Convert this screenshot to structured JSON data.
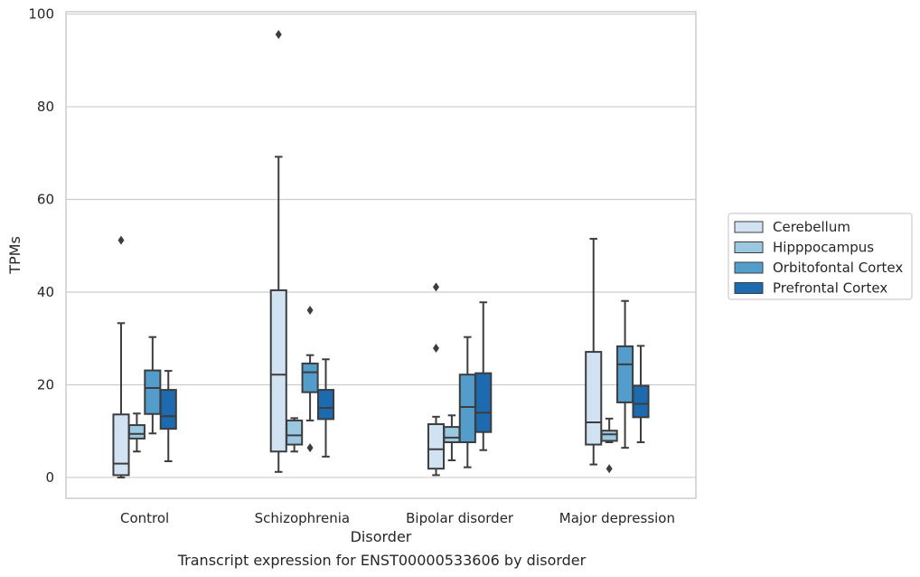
{
  "caption": "Transcript expression for ENST00000533606 by disorder",
  "chart_data": {
    "type": "boxplot",
    "xlabel": "Disorder",
    "ylabel": "TPMs",
    "ylim": [
      -4.5,
      100.5
    ],
    "yticks": [
      0,
      20,
      40,
      60,
      80,
      100
    ],
    "grid": "horizontal",
    "legend_position": "right",
    "categories": [
      "Control",
      "Schizophrenia",
      "Bipolar disorder",
      "Major depression"
    ],
    "series": [
      {
        "name": "Cerebellum",
        "color": "#d1e2f2",
        "boxes": [
          {
            "whislo": 0,
            "q1": 0.5,
            "med": 3,
            "q3": 13.6,
            "whishi": 33.3,
            "fliers": [
              51.2
            ]
          },
          {
            "whislo": 1.2,
            "q1": 5.6,
            "med": 22.2,
            "q3": 40.4,
            "whishi": 69.2,
            "fliers": [
              95.6
            ]
          },
          {
            "whislo": 0.5,
            "q1": 1.9,
            "med": 6.1,
            "q3": 11.5,
            "whishi": 13.1,
            "fliers": [
              27.9,
              41.1
            ]
          },
          {
            "whislo": 2.8,
            "q1": 7.1,
            "med": 11.9,
            "q3": 27.1,
            "whishi": 51.5,
            "fliers": []
          }
        ]
      },
      {
        "name": "Hipppocampus",
        "color": "#9ac8e0",
        "boxes": [
          {
            "whislo": 5.6,
            "q1": 8.4,
            "med": 9.4,
            "q3": 11.3,
            "whishi": 13.8,
            "fliers": []
          },
          {
            "whislo": 5.6,
            "q1": 7.1,
            "med": 9.1,
            "q3": 12.3,
            "whishi": 12.8,
            "fliers": []
          },
          {
            "whislo": 3.7,
            "q1": 7.6,
            "med": 8.6,
            "q3": 10.9,
            "whishi": 13.4,
            "fliers": []
          },
          {
            "whislo": 7.6,
            "q1": 7.9,
            "med": 9.3,
            "q3": 10.1,
            "whishi": 12.7,
            "fliers": [
              1.9
            ]
          }
        ]
      },
      {
        "name": "Orbitofontal Cortex",
        "color": "#529dcc",
        "boxes": [
          {
            "whislo": 9.5,
            "q1": 13.7,
            "med": 19.3,
            "q3": 23.1,
            "whishi": 30.3,
            "fliers": []
          },
          {
            "whislo": 12.3,
            "q1": 18.4,
            "med": 22.7,
            "q3": 24.6,
            "whishi": 26.4,
            "fliers": [
              6.4,
              36.1
            ]
          },
          {
            "whislo": 2.2,
            "q1": 7.6,
            "med": 15.2,
            "q3": 22.2,
            "whishi": 30.3,
            "fliers": []
          },
          {
            "whislo": 6.4,
            "q1": 16.2,
            "med": 24.4,
            "q3": 28.3,
            "whishi": 38.1,
            "fliers": []
          }
        ]
      },
      {
        "name": "Prefrontal Cortex",
        "color": "#1c6aaf",
        "boxes": [
          {
            "whislo": 3.5,
            "q1": 10.5,
            "med": 13.2,
            "q3": 18.9,
            "whishi": 23.0,
            "fliers": []
          },
          {
            "whislo": 4.5,
            "q1": 12.6,
            "med": 15.0,
            "q3": 18.9,
            "whishi": 25.5,
            "fliers": []
          },
          {
            "whislo": 5.9,
            "q1": 9.8,
            "med": 14.0,
            "q3": 22.5,
            "whishi": 37.8,
            "fliers": []
          },
          {
            "whislo": 7.6,
            "q1": 13.0,
            "med": 15.9,
            "q3": 19.8,
            "whishi": 28.4,
            "fliers": []
          }
        ]
      }
    ]
  }
}
